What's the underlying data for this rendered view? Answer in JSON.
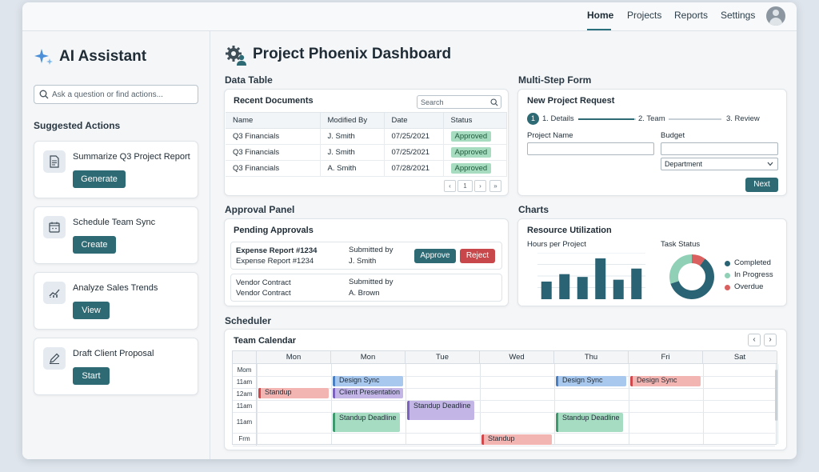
{
  "nav": {
    "items": [
      "Home",
      "Projects",
      "Reports",
      "Settings"
    ],
    "active": "Home"
  },
  "sidebar": {
    "title": "AI Assistant",
    "search_placeholder": "Ask a question or find actions...",
    "suggested_title": "Suggested Actions",
    "actions": [
      {
        "label": "Summarize Q3 Project Report",
        "button": "Generate",
        "icon": "document-icon"
      },
      {
        "label": "Schedule Team Sync",
        "button": "Create",
        "icon": "calendar-icon"
      },
      {
        "label": "Analyze Sales Trends",
        "button": "View",
        "icon": "trend-chart-icon"
      },
      {
        "label": "Draft Client Proposal",
        "button": "Start",
        "icon": "pencil-icon"
      }
    ]
  },
  "dashboard": {
    "title": "Project Phoenix Dashboard"
  },
  "data_table": {
    "section": "Data Table",
    "card_title": "Recent Documents",
    "search_placeholder": "Search",
    "columns": [
      "Name",
      "Modified By",
      "Date",
      "Status"
    ],
    "rows": [
      [
        "Q3 Financials",
        "J. Smith",
        "07/25/2021",
        "Approved"
      ],
      [
        "Q3 Financials",
        "J. Smith",
        "07/25/2021",
        "Approved"
      ],
      [
        "Q3 Financials",
        "A. Smith",
        "07/28/2021",
        "Approved"
      ]
    ],
    "pager": {
      "prev": "‹",
      "page": "1",
      "next": "›",
      "last": "»"
    }
  },
  "approval": {
    "section": "Approval Panel",
    "card_title": "Pending Approvals",
    "items": [
      {
        "title": "Expense Report #1234",
        "subtitle": "Expense Report #1234",
        "submitted_label": "Submitted by",
        "submitted_by": "J. Smith",
        "approve": "Approve",
        "reject": "Reject"
      },
      {
        "title": "Vendor Contract",
        "subtitle": "Vendor Contract",
        "submitted_label": "Submitted by",
        "submitted_by": "A. Brown"
      }
    ]
  },
  "form": {
    "section": "Multi-Step Form",
    "card_title": "New Project Request",
    "steps": [
      {
        "number": "1",
        "label": "1. Details"
      },
      {
        "label": "2. Team"
      },
      {
        "label": "3. Review"
      }
    ],
    "project_name_label": "Project Name",
    "budget_label": "Budget",
    "department_value": "Department",
    "next": "Next"
  },
  "charts": {
    "section": "Charts",
    "card_title": "Resource Utilization",
    "bar_title": "Hours per Project",
    "donut_title": "Task Status",
    "colors": {
      "completed": "#2a6373",
      "in_progress": "#8fd0b7",
      "overdue": "#d9605f"
    }
  },
  "chart_data": [
    {
      "type": "bar",
      "title": "Hours per Project",
      "categories": [
        "",
        "",
        "",
        "",
        "",
        ""
      ],
      "values": [
        19,
        27,
        24,
        44,
        21,
        33
      ],
      "ylim": [
        0,
        50
      ],
      "grid": true
    },
    {
      "type": "pie",
      "title": "Task Status",
      "labels": [
        "Completed",
        "In Progress",
        "Overdue"
      ],
      "values": [
        60,
        30,
        10
      ],
      "legend": "right"
    }
  ],
  "scheduler": {
    "section": "Scheduler",
    "card_title": "Team Calendar",
    "prev": "‹",
    "next": "›",
    "days": [
      "Mon",
      "Mon",
      "Tue",
      "Wed",
      "Thu",
      "Fri",
      "Sat"
    ],
    "times": [
      "Mom",
      "11am",
      "12am",
      "11am",
      "11am",
      "Frm"
    ],
    "events": [
      {
        "label": "Design Sync",
        "day": 1,
        "slot": 1,
        "span": 1,
        "color": "blue"
      },
      {
        "label": "Design Sync",
        "day": 4,
        "slot": 1,
        "span": 1,
        "color": "blue"
      },
      {
        "label": "Design Sync",
        "day": 5,
        "slot": 1,
        "span": 1,
        "color": "red"
      },
      {
        "label": "Standup",
        "day": 0,
        "slot": 2,
        "span": 1,
        "color": "red"
      },
      {
        "label": "Client Presentation",
        "day": 1,
        "slot": 2,
        "span": 1,
        "color": "purple"
      },
      {
        "label": "Standup Deadline",
        "day": 2,
        "slot": 3,
        "span": 2,
        "color": "purple"
      },
      {
        "label": "Standup Deadline",
        "day": 1,
        "slot": 4,
        "span": 2,
        "color": "green"
      },
      {
        "label": "Standup Deadline",
        "day": 4,
        "slot": 4,
        "span": 2,
        "color": "green"
      },
      {
        "label": "Standup",
        "day": 3,
        "slot": 6,
        "span": 1,
        "color": "red"
      }
    ]
  }
}
